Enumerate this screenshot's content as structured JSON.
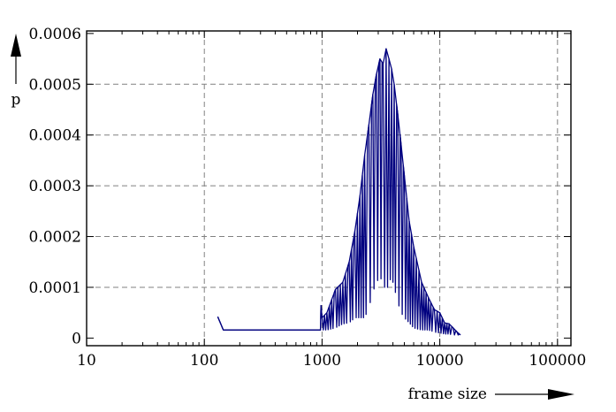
{
  "chart_data": {
    "type": "line",
    "title": "",
    "xlabel": "frame size",
    "ylabel": "p",
    "xscale": "log",
    "xlim": [
      10,
      130000
    ],
    "ylim": [
      -1.5e-05,
      0.000605
    ],
    "x_ticks": [
      10,
      100,
      1000,
      10000,
      100000
    ],
    "x_tick_labels": [
      "10",
      "100",
      "1000",
      "10000",
      "100000"
    ],
    "y_ticks": [
      0,
      0.0001,
      0.0002,
      0.0003,
      0.0004,
      0.0005,
      0.0006
    ],
    "y_tick_labels": [
      "0",
      "0.0001",
      "0.0002",
      "0.0003",
      "0.0004",
      "0.0005",
      "0.0006"
    ],
    "grid": true,
    "line_color": "#00007f",
    "series": [
      {
        "x": [
          130,
          145,
          500,
          970,
          980,
          1000,
          1100,
          1300,
          1500,
          1700,
          1900,
          2100,
          2300,
          2500,
          2700,
          2900,
          3100,
          3300,
          3500,
          3700,
          3900,
          4100,
          4400,
          4700,
          5000,
          5500,
          6000,
          7000,
          8000,
          9000,
          10000,
          11000,
          12000,
          13000,
          14000,
          15000
        ],
        "y": [
          4.2e-05,
          1.6e-05,
          1.6e-05,
          1.6e-05,
          6.4e-05,
          4e-05,
          5e-05,
          9.6e-05,
          0.00011,
          0.00015,
          0.00021,
          0.00028,
          0.00036,
          0.00042,
          0.00048,
          0.00052,
          0.00055,
          0.00054,
          0.00057,
          0.00055,
          0.00053,
          0.0005,
          0.00044,
          0.00038,
          0.00032,
          0.00023,
          0.00018,
          0.00011,
          8e-05,
          5.6e-05,
          5e-05,
          3e-05,
          2.8e-05,
          2e-05,
          1.2e-05,
          6e-06
        ],
        "low": [
          4.2e-05,
          1.6e-05,
          1.6e-05,
          1.6e-05,
          1.6e-05,
          1.6e-05,
          1.6e-05,
          2e-05,
          2.8e-05,
          3e-05,
          4e-05,
          4e-05,
          4e-05,
          6e-05,
          9e-05,
          0.00011,
          0.00012,
          0.00011,
          9e-05,
          0.00011,
          0.00012,
          0.0001,
          7e-05,
          5e-05,
          4e-05,
          3e-05,
          2e-05,
          1.6e-05,
          1.6e-05,
          1.2e-05,
          1e-05,
          8e-06,
          8e-06,
          6e-06,
          6e-06,
          6e-06
        ]
      }
    ]
  }
}
